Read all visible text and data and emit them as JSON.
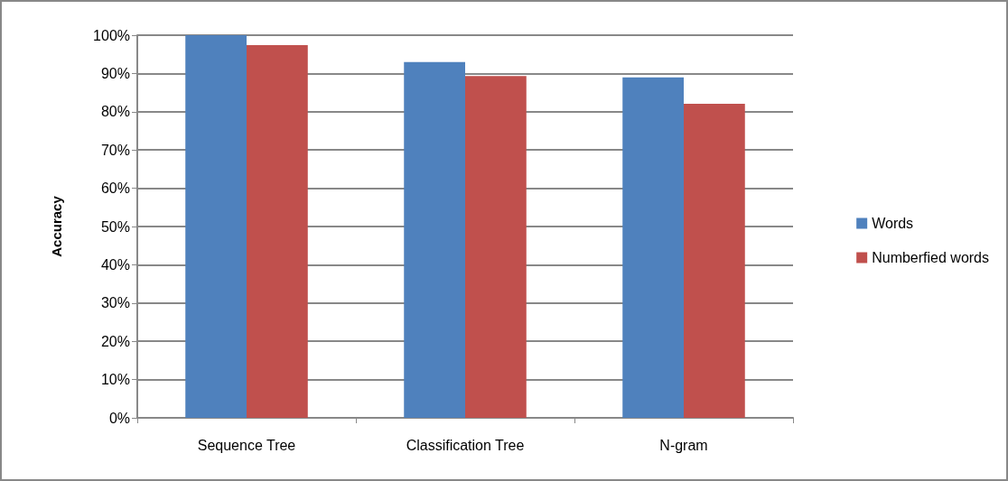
{
  "chart_data": {
    "type": "bar",
    "ylabel": "Accuracy",
    "categories": [
      "Sequence Tree",
      "Classification Tree",
      "N-gram"
    ],
    "series": [
      {
        "name": "Words",
        "color": "#4f81bd",
        "values": [
          100,
          93,
          89
        ]
      },
      {
        "name": "Numberfied words",
        "color": "#c0504d",
        "values": [
          97.4,
          89.3,
          82.1
        ]
      }
    ],
    "ylim": [
      0,
      100
    ],
    "yticks": [
      {
        "value": 0,
        "label": "0%"
      },
      {
        "value": 10,
        "label": "10%"
      },
      {
        "value": 20,
        "label": "20%"
      },
      {
        "value": 30,
        "label": "30%"
      },
      {
        "value": 40,
        "label": "40%"
      },
      {
        "value": 50,
        "label": "50%"
      },
      {
        "value": 60,
        "label": "60%"
      },
      {
        "value": 70,
        "label": "70%"
      },
      {
        "value": 80,
        "label": "80%"
      },
      {
        "value": 90,
        "label": "90%"
      },
      {
        "value": 100,
        "label": "100%"
      }
    ],
    "grid": "y",
    "legend": "right"
  }
}
